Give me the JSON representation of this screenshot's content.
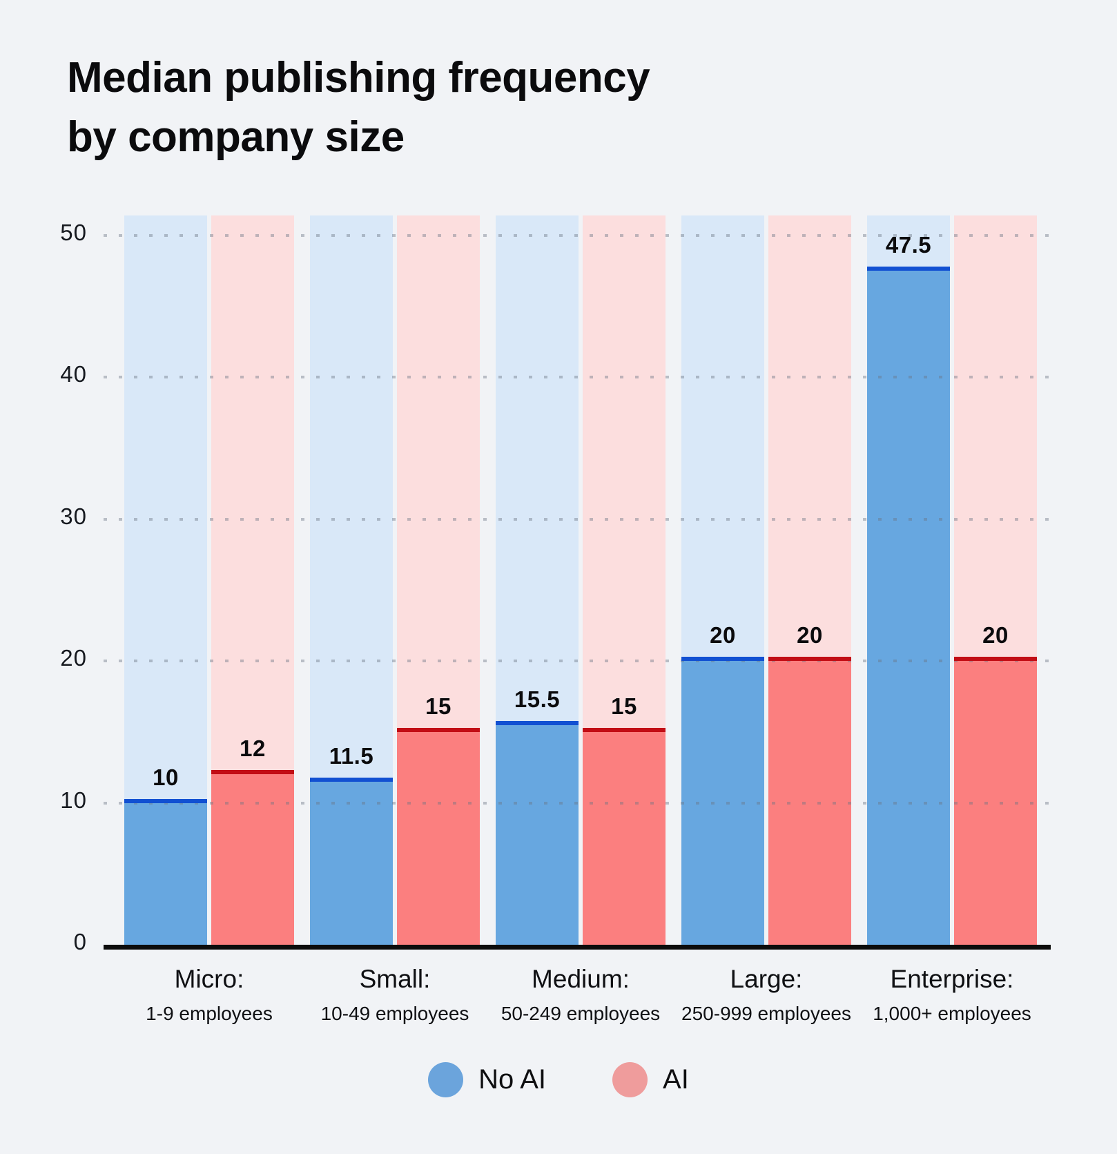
{
  "title_lines": [
    "Median publishing frequency",
    "by company size"
  ],
  "colors": {
    "page_bg": "#f1f3f6",
    "axis": "#0c0c0c",
    "grid_dot": "#c4c9d1",
    "text": "#0b0b0d"
  },
  "chart_data": {
    "type": "bar",
    "title": "Median publishing frequency by company size",
    "categories": [
      {
        "label": "Micro:",
        "sublabel": "1-9 employees"
      },
      {
        "label": "Small:",
        "sublabel": "10-49 employees"
      },
      {
        "label": "Medium:",
        "sublabel": "50-249 employees"
      },
      {
        "label": "Large:",
        "sublabel": "250-999 employees"
      },
      {
        "label": "Enterprise:",
        "sublabel": "1,000+ employees"
      }
    ],
    "series": [
      {
        "name": "No AI",
        "values": [
          10,
          11.5,
          15.5,
          20,
          47.5
        ],
        "fill_color": "#67a7e0",
        "edge_color": "#1150d2",
        "track_color": "#d9e8f8"
      },
      {
        "name": "AI",
        "values": [
          12,
          15,
          15,
          20,
          20
        ],
        "fill_color": "#fb7f7f",
        "edge_color": "#c20d15",
        "track_color": "#fcdede"
      }
    ],
    "xlabel": "",
    "ylabel": "",
    "yticks": [
      0,
      10,
      20,
      30,
      40,
      50
    ],
    "ylim": [
      0,
      51.4
    ],
    "grid": "horizontal dotted",
    "legend_position": "bottom"
  },
  "legend": {
    "items": [
      {
        "label": "No AI",
        "swatch_color": "#6ba4dc"
      },
      {
        "label": "AI",
        "swatch_color": "#ef9c9c"
      }
    ]
  }
}
